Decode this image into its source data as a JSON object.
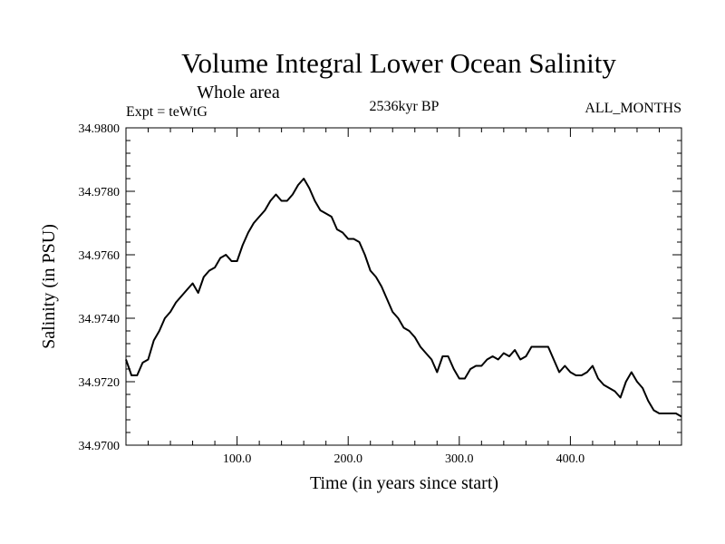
{
  "chart_data": {
    "type": "line",
    "title": "Volume Integral Lower Ocean Salinity",
    "subtitle": "Whole area",
    "left_label": "Expt = teWtG",
    "center_label": "2536kyr BP",
    "right_label": "ALL_MONTHS",
    "xlabel": "Time (in years since start)",
    "ylabel": "Salinity (in PSU)",
    "xlim": [
      0,
      500
    ],
    "ylim": [
      34.97,
      34.98
    ],
    "x_ticks": [
      100,
      200,
      300,
      400
    ],
    "x_tick_labels": [
      "100.0",
      "200.0",
      "300.0",
      "400.0"
    ],
    "y_ticks": [
      34.97,
      34.972,
      34.974,
      34.976,
      34.978,
      34.98
    ],
    "y_tick_labels": [
      "34.9700",
      "34.9720",
      "34.9740",
      "34.9760",
      "34.9780",
      "34.9800"
    ],
    "grid": false,
    "series": [
      {
        "name": "salinity",
        "color": "#000000",
        "x": [
          0,
          5,
          10,
          15,
          20,
          25,
          30,
          35,
          40,
          45,
          50,
          55,
          60,
          65,
          70,
          75,
          80,
          85,
          90,
          95,
          100,
          105,
          110,
          115,
          120,
          125,
          130,
          135,
          140,
          145,
          150,
          155,
          160,
          165,
          170,
          175,
          180,
          185,
          190,
          195,
          200,
          205,
          210,
          215,
          220,
          225,
          230,
          235,
          240,
          245,
          250,
          255,
          260,
          265,
          270,
          275,
          280,
          285,
          290,
          295,
          300,
          305,
          310,
          315,
          320,
          325,
          330,
          335,
          340,
          345,
          350,
          355,
          360,
          365,
          370,
          375,
          380,
          385,
          390,
          395,
          400,
          405,
          410,
          415,
          420,
          425,
          430,
          435,
          440,
          445,
          450,
          455,
          460,
          465,
          470,
          475,
          480,
          485,
          490,
          495,
          500
        ],
        "values": [
          34.9727,
          34.9722,
          34.9722,
          34.9726,
          34.9727,
          34.9733,
          34.9736,
          34.974,
          34.9742,
          34.9745,
          34.9747,
          34.9749,
          34.9751,
          34.9748,
          34.9753,
          34.9755,
          34.9756,
          34.9759,
          34.976,
          34.9758,
          34.9758,
          34.9763,
          34.9767,
          34.977,
          34.9772,
          34.9774,
          34.9777,
          34.9779,
          34.9777,
          34.9777,
          34.9779,
          34.9782,
          34.9784,
          34.9781,
          34.9777,
          34.9774,
          34.9773,
          34.9772,
          34.9768,
          34.9767,
          34.9765,
          34.9765,
          34.9764,
          34.976,
          34.9755,
          34.9753,
          34.975,
          34.9746,
          34.9742,
          34.974,
          34.9737,
          34.9736,
          34.9734,
          34.9731,
          34.9729,
          34.9727,
          34.9723,
          34.9728,
          34.9728,
          34.9724,
          34.9721,
          34.9721,
          34.9724,
          34.9725,
          34.9725,
          34.9727,
          34.9728,
          34.9727,
          34.9729,
          34.9728,
          34.973,
          34.9727,
          34.9728,
          34.9731,
          34.9731,
          34.9731,
          34.9731,
          34.9727,
          34.9723,
          34.9725,
          34.9723,
          34.9722,
          34.9722,
          34.9723,
          34.9725,
          34.9721,
          34.9719,
          34.9718,
          34.9717,
          34.9715,
          34.972,
          34.9723,
          34.972,
          34.9718,
          34.9714,
          34.9711,
          34.971,
          34.971,
          34.971,
          34.971,
          34.9709
        ]
      }
    ]
  }
}
